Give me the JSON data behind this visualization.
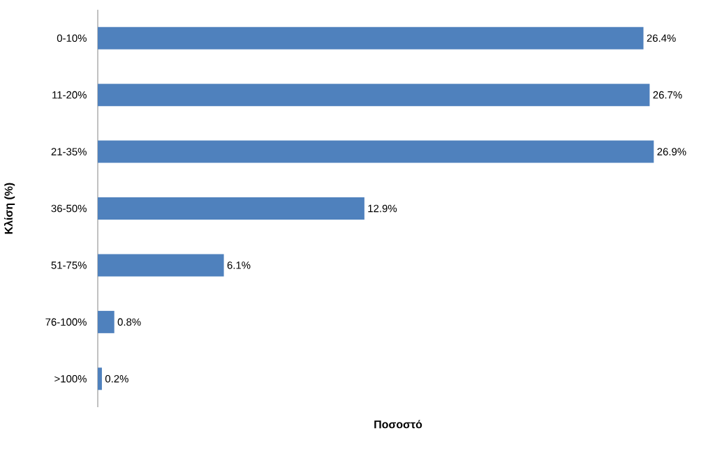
{
  "chart_data": {
    "type": "bar",
    "orientation": "horizontal",
    "xlabel": "Ποσοστό",
    "ylabel": "Κλίση (%)",
    "categories": [
      "0-10%",
      "11-20%",
      "21-35%",
      "36-50%",
      "51-75%",
      "76-100%",
      ">100%"
    ],
    "values": [
      26.4,
      26.7,
      26.9,
      12.9,
      6.1,
      0.8,
      0.2
    ],
    "value_labels": [
      "26.4%",
      "26.7%",
      "26.9%",
      "12.9%",
      "6.1%",
      "0.8%",
      "0.2%"
    ],
    "color": "#4f81bd",
    "tick_labels": "y",
    "grid": false
  }
}
